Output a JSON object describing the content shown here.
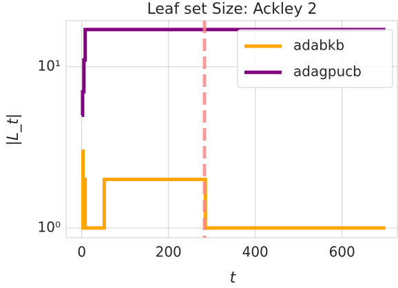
{
  "chart_data": {
    "type": "line",
    "title": "Leaf set Size: Ackley 2",
    "x_label": "t",
    "y_label": "|L_t|",
    "log_y": true,
    "grid": true,
    "legend": "upper right",
    "xlim": [
      -36,
      729
    ],
    "ylim": [
      0.87,
      19.3
    ],
    "xticks": [
      0,
      200,
      400,
      600
    ],
    "yticks": [
      {
        "value": 1,
        "label": "10⁰"
      },
      {
        "value": 10,
        "label": "10¹"
      }
    ],
    "vline": {
      "x": 283,
      "color": "#f88a8a"
    },
    "series": [
      {
        "name": "adabkb",
        "color": "#ffa500",
        "x": [
          0,
          3,
          3,
          6,
          6,
          8,
          8,
          52,
          52,
          285,
          285,
          700
        ],
        "values": [
          3,
          3,
          1,
          1,
          2,
          2,
          1,
          1,
          2,
          2,
          1,
          1
        ]
      },
      {
        "name": "adagpucb",
        "color": "#800080",
        "x": [
          0,
          2,
          2,
          5,
          5,
          8,
          8,
          700
        ],
        "values": [
          5,
          5,
          7,
          7,
          11,
          11,
          17,
          17
        ]
      }
    ]
  }
}
